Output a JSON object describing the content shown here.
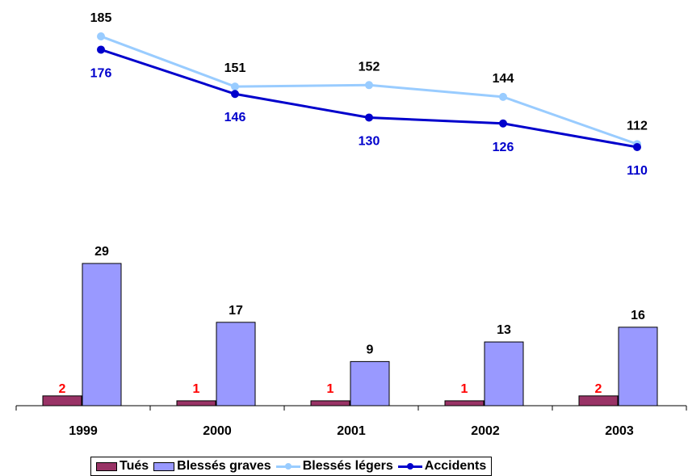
{
  "chart_data": {
    "type": "bar+line",
    "categories": [
      "1999",
      "2000",
      "2001",
      "2002",
      "2003"
    ],
    "bar_series": [
      {
        "name": "Tués",
        "values": [
          2,
          1,
          1,
          1,
          2
        ],
        "color": "#993366",
        "label_color": "#ff0000"
      },
      {
        "name": "Blessés graves",
        "values": [
          29,
          17,
          9,
          13,
          16
        ],
        "color": "#9999ff",
        "label_color": "#000000"
      }
    ],
    "line_series": [
      {
        "name": "Blessés légers",
        "values": [
          185,
          151,
          152,
          144,
          112
        ],
        "color": "#99ccff",
        "label_color": "#000000"
      },
      {
        "name": "Accidents",
        "values": [
          176,
          146,
          130,
          126,
          110
        ],
        "color": "#0000cc",
        "label_color": "#0000cc"
      }
    ],
    "legend": {
      "position": "bottom"
    },
    "grid": false
  }
}
